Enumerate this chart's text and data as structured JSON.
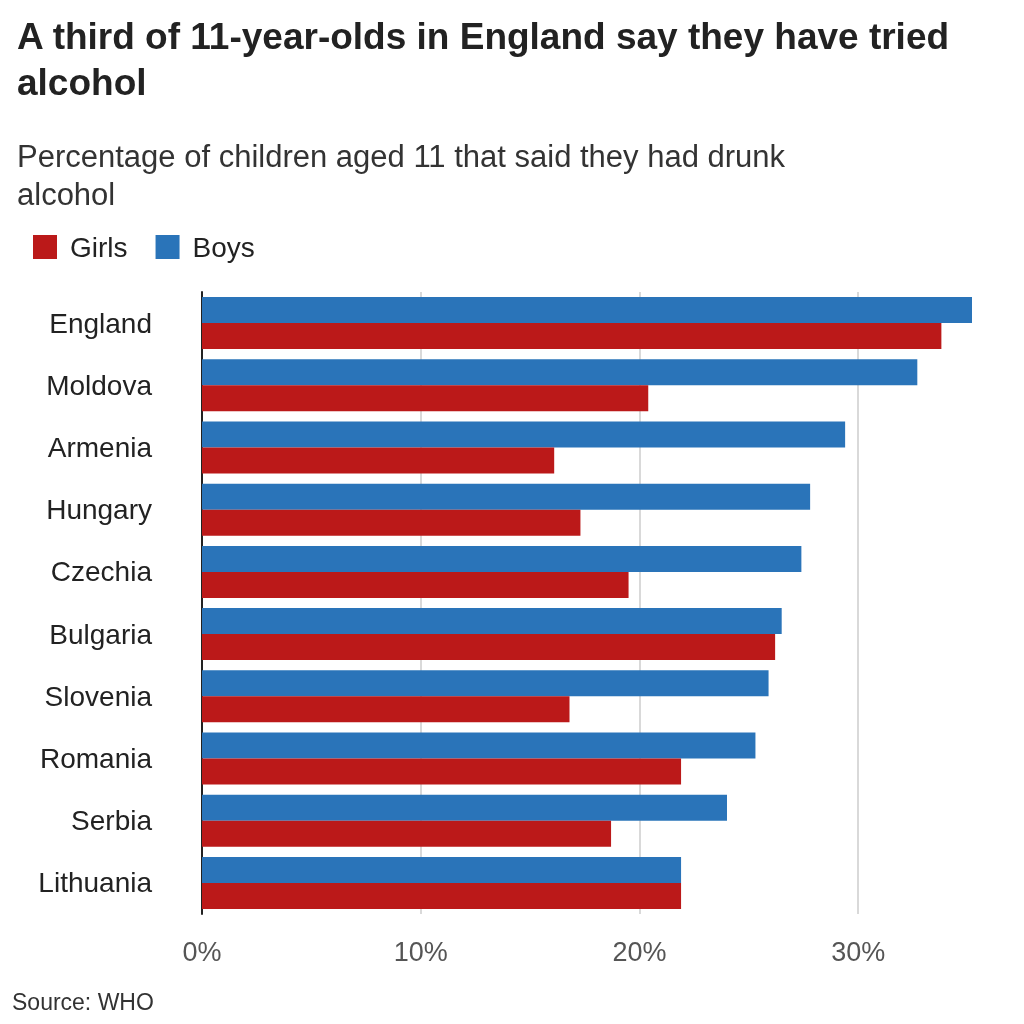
{
  "chart_data": {
    "type": "bar",
    "orientation": "horizontal",
    "title": "A third of 11-year-olds in England say they have tried alcohol",
    "subtitle": "Percentage of children aged 11 that said they had drunk alcohol",
    "categories": [
      "England",
      "Moldova",
      "Armenia",
      "Hungary",
      "Czechia",
      "Bulgaria",
      "Slovenia",
      "Romania",
      "Serbia",
      "Lithuania"
    ],
    "series": [
      {
        "name": "Girls",
        "color": "#bb1919",
        "values": [
          33.8,
          20.4,
          16.1,
          17.3,
          19.5,
          26.2,
          16.8,
          21.9,
          18.7,
          21.9
        ]
      },
      {
        "name": "Boys",
        "color": "#2a74b9",
        "values": [
          35.2,
          32.7,
          29.4,
          27.8,
          27.4,
          26.5,
          25.9,
          25.3,
          24.0,
          21.9
        ]
      }
    ],
    "xlim": [
      0,
      35.2
    ],
    "xticks": [
      {
        "value": 0,
        "label": "0%"
      },
      {
        "value": 10,
        "label": "10%"
      },
      {
        "value": 20,
        "label": "20%"
      },
      {
        "value": 30,
        "label": "30%"
      }
    ],
    "grid": "x",
    "legend": "top left",
    "annotations": [
      "Source: WHO"
    ]
  }
}
